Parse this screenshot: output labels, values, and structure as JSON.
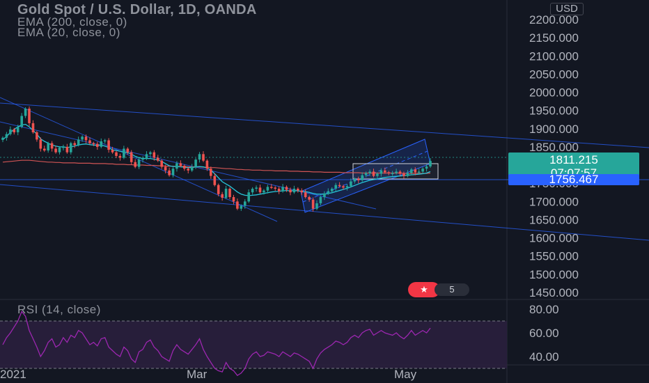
{
  "header": {
    "title": "Gold Spot / U.S. Dollar, 1D, OANDA",
    "indicator_1": "EMA (200, close, 0)",
    "indicator_2": "EMA (20, close, 0)",
    "currency": "USD"
  },
  "price_tags": {
    "last_price": "1811.215",
    "countdown": "07:07:57",
    "level": "1756.467"
  },
  "event_badge": {
    "count": "5"
  },
  "rsi_pane": {
    "label": "RSI (14, close)"
  },
  "colors": {
    "background": "#131722",
    "up_candle": "#26a69a",
    "down_candle": "#ef5350",
    "ema200": "#d05454",
    "ema20": "#26c6da",
    "trendline": "#2962ff",
    "rsi_line": "#9c27b0",
    "rsi_band": "#2a1f3d"
  },
  "chart_data": [
    {
      "type": "candlestick",
      "title": "Gold Spot / U.S. Dollar, 1D, OANDA",
      "x_tick_labels": [
        "2021",
        "Mar",
        "May"
      ],
      "y_tick_labels": [
        "2200.000",
        "2150.000",
        "2100.000",
        "2050.000",
        "2000.000",
        "1950.000",
        "1900.000",
        "1850.000",
        "1800.000",
        "1750.000",
        "1700.000",
        "1650.000",
        "1600.000",
        "1550.000",
        "1500.000",
        "1450.000"
      ],
      "ylim": [
        1420,
        2215
      ],
      "close_series": [
        1875,
        1885,
        1898,
        1890,
        1905,
        1935,
        1955,
        1915,
        1890,
        1870,
        1845,
        1840,
        1860,
        1845,
        1835,
        1848,
        1850,
        1835,
        1860,
        1855,
        1870,
        1878,
        1868,
        1860,
        1858,
        1850,
        1865,
        1868,
        1842,
        1835,
        1825,
        1820,
        1845,
        1835,
        1808,
        1795,
        1815,
        1818,
        1830,
        1835,
        1820,
        1812,
        1795,
        1785,
        1772,
        1790,
        1805,
        1798,
        1790,
        1785,
        1795,
        1815,
        1830,
        1812,
        1790,
        1770,
        1745,
        1720,
        1710,
        1735,
        1712,
        1700,
        1680,
        1688,
        1700,
        1725,
        1735,
        1738,
        1725,
        1730,
        1740,
        1738,
        1735,
        1728,
        1740,
        1732,
        1725,
        1735,
        1730,
        1725,
        1712,
        1705,
        1680,
        1695,
        1712,
        1722,
        1728,
        1735,
        1745,
        1742,
        1738,
        1742,
        1755,
        1762,
        1758,
        1772,
        1778,
        1782,
        1770,
        1776,
        1785,
        1780,
        1778,
        1778,
        1782,
        1776,
        1770,
        1778,
        1788,
        1780,
        1782,
        1790,
        1796,
        1811.215
      ],
      "ema20": [
        1870,
        1878,
        1890,
        1898,
        1905,
        1910,
        1912,
        1905,
        1895,
        1885,
        1872,
        1865,
        1860,
        1855,
        1852,
        1850,
        1850,
        1848,
        1850,
        1852,
        1855,
        1857,
        1858,
        1856,
        1855,
        1854,
        1855,
        1852,
        1848,
        1842,
        1840,
        1838,
        1836,
        1834,
        1830,
        1824,
        1820,
        1818,
        1818,
        1818,
        1816,
        1814,
        1810,
        1804,
        1798,
        1796,
        1796,
        1795,
        1794,
        1793,
        1793,
        1795,
        1796,
        1795,
        1792,
        1786,
        1776,
        1765,
        1754,
        1748,
        1742,
        1734,
        1726,
        1720,
        1717,
        1716,
        1717,
        1718,
        1720,
        1722,
        1724,
        1726,
        1727,
        1728,
        1729,
        1730,
        1729,
        1730,
        1729,
        1728,
        1727,
        1725,
        1722,
        1720,
        1720,
        1720,
        1722,
        1724,
        1727,
        1730,
        1733,
        1736,
        1740,
        1744,
        1748,
        1752,
        1755,
        1758,
        1760,
        1762,
        1764,
        1766,
        1767,
        1768,
        1769,
        1770,
        1771,
        1772,
        1773,
        1774,
        1775,
        1776,
        1778,
        1782
      ],
      "ema200": [
        1808,
        1809,
        1810,
        1811,
        1812,
        1813,
        1813,
        1813,
        1812,
        1811,
        1810,
        1809,
        1808,
        1808,
        1807,
        1807,
        1806,
        1806,
        1806,
        1806,
        1805,
        1805,
        1805,
        1805,
        1804,
        1804,
        1804,
        1804,
        1803,
        1803,
        1802,
        1802,
        1802,
        1801,
        1801,
        1800,
        1800,
        1800,
        1799,
        1799,
        1799,
        1798,
        1798,
        1797,
        1797,
        1797,
        1796,
        1796,
        1796,
        1795,
        1795,
        1795,
        1795,
        1794,
        1794,
        1793,
        1793,
        1792,
        1791,
        1790,
        1790,
        1789,
        1788,
        1788,
        1787,
        1787,
        1786,
        1786,
        1786,
        1785,
        1785,
        1785,
        1784,
        1784,
        1784,
        1784,
        1783,
        1783,
        1783,
        1782,
        1782,
        1782,
        1781,
        1781,
        1781,
        1780,
        1780,
        1780,
        1780,
        1780,
        1779,
        1779,
        1779,
        1779,
        1779,
        1778,
        1778,
        1778,
        1778,
        1778,
        1778,
        1778,
        1778,
        1778,
        1778,
        1778,
        1777,
        1777,
        1777,
        1777,
        1777,
        1777,
        1777,
        1778
      ]
    },
    {
      "type": "line",
      "title": "RSI (14, close)",
      "y_tick_labels": [
        "80.00",
        "60.00",
        "40.00"
      ],
      "ylim": [
        35,
        87
      ],
      "band": [
        30,
        70
      ],
      "rsi": [
        50,
        56,
        60,
        65,
        70,
        78,
        74,
        62,
        55,
        48,
        40,
        45,
        52,
        55,
        48,
        50,
        56,
        52,
        58,
        56,
        62,
        60,
        55,
        50,
        52,
        49,
        55,
        56,
        48,
        45,
        42,
        40,
        48,
        45,
        38,
        35,
        44,
        46,
        52,
        54,
        48,
        45,
        40,
        38,
        36,
        45,
        50,
        46,
        44,
        42,
        46,
        50,
        55,
        46,
        40,
        35,
        30,
        28,
        27,
        35,
        30,
        28,
        24,
        26,
        30,
        38,
        42,
        44,
        40,
        41,
        44,
        43,
        42,
        40,
        44,
        42,
        40,
        43,
        42,
        40,
        38,
        36,
        30,
        38,
        43,
        46,
        48,
        50,
        53,
        52,
        50,
        52,
        56,
        58,
        56,
        60,
        62,
        63,
        58,
        60,
        62,
        60,
        59,
        58,
        60,
        57,
        55,
        58,
        62,
        58,
        60,
        62,
        60,
        64
      ]
    }
  ]
}
